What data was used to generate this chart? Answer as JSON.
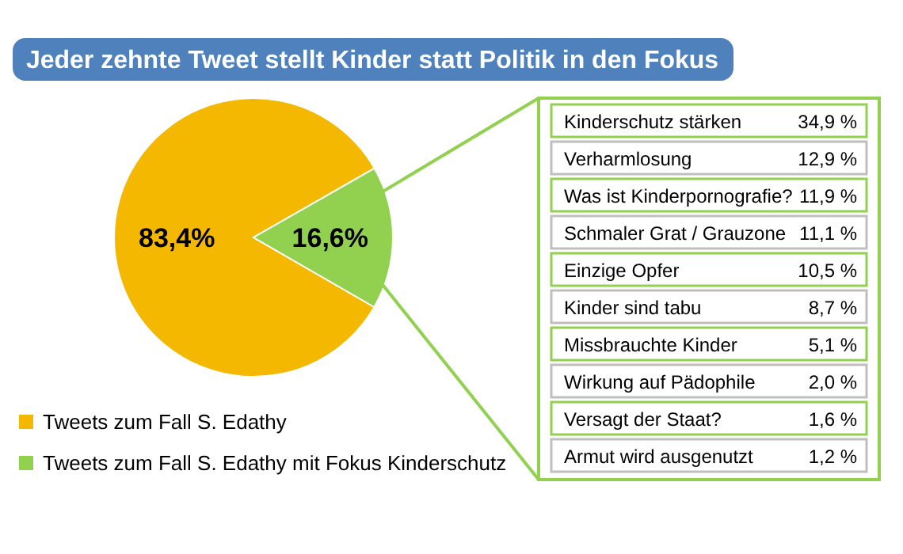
{
  "chart_data": [
    {
      "type": "pie",
      "title": "Jeder zehnte Tweet stellt Kinder statt Politik in den Fokus",
      "categories": [
        "Tweets zum Fall S. Edathy",
        "Tweets zum Fall S. Edathy mit Fokus Kinderschutz"
      ],
      "values": [
        83.4,
        16.6
      ],
      "colors": [
        "#f5b800",
        "#92d050"
      ],
      "value_labels": [
        "83,4%",
        "16,6%"
      ],
      "legend": "bottom left"
    },
    {
      "type": "other",
      "categories": [
        "Kinderschutz stärken",
        "Verharmlosung",
        "Was ist Kinderpornografie?",
        "Schmaler Grat / Grauzone",
        "Einzige Opfer",
        "Kinder sind tabu",
        "Missbrauchte Kinder",
        "Wirkung auf Pädophile",
        "Versagt der Staat?",
        "Armut wird ausgenutzt"
      ],
      "value_labels": [
        "34,9 %",
        "12,9 %",
        "11,9 %",
        "11,1 %",
        "10,5 %",
        "8,7 %",
        "5,1 %",
        "2,0 %",
        "1,6 %",
        "1,2 %"
      ]
    }
  ]
}
